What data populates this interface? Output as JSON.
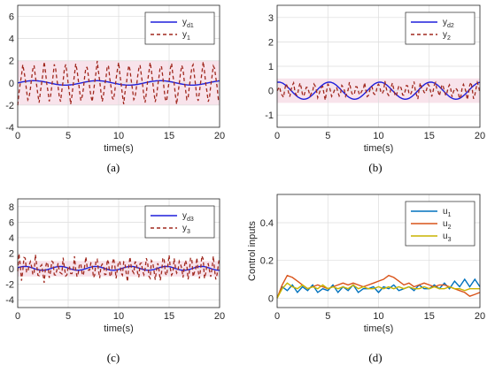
{
  "chart_data": [
    {
      "id": "a",
      "type": "line",
      "caption": "(a)",
      "xlabel": "time(s)",
      "ylabel": "",
      "xlim": [
        0,
        20
      ],
      "ylim": [
        -4,
        7
      ],
      "xticks": [
        0,
        5,
        10,
        15,
        20
      ],
      "yticks": [
        -4,
        -2,
        0,
        2,
        4,
        6
      ],
      "grid": true,
      "legend_position": "top-right",
      "band": [
        -2,
        2
      ],
      "series": [
        {
          "name": "y_d1",
          "label_main": "y",
          "label_sub": "d1",
          "style": "solid",
          "color": "#1f1fdc",
          "shape": "sine",
          "amp": 0.2,
          "period": 6.28,
          "phase": 0,
          "offset": 0
        },
        {
          "name": "y_1",
          "label_main": "y",
          "label_sub": "1",
          "style": "dashed",
          "color": "#a0281e",
          "shape": "zigzag",
          "amp": 1.9,
          "period": 1.05,
          "offset": 0
        }
      ]
    },
    {
      "id": "b",
      "type": "line",
      "caption": "(b)",
      "xlabel": "time(s)",
      "ylabel": "",
      "xlim": [
        0,
        20
      ],
      "ylim": [
        -1.5,
        3.5
      ],
      "xticks": [
        0,
        5,
        10,
        15,
        20
      ],
      "yticks": [
        -1,
        0,
        1,
        2,
        3
      ],
      "grid": true,
      "legend_position": "top-right",
      "band": [
        -0.5,
        0.5
      ],
      "series": [
        {
          "name": "y_d2",
          "label_main": "y",
          "label_sub": "d2",
          "style": "solid",
          "color": "#1f1fdc",
          "shape": "sine",
          "amp": 0.35,
          "period": 5,
          "phase": 1.4,
          "offset": 0
        },
        {
          "name": "y_2",
          "label_main": "y",
          "label_sub": "2",
          "style": "dashed",
          "color": "#a0281e",
          "shape": "noise",
          "amp": 0.3,
          "period": 0.7,
          "offset": 0
        }
      ]
    },
    {
      "id": "c",
      "type": "line",
      "caption": "(c)",
      "xlabel": "time(s)",
      "ylabel": "",
      "xlim": [
        0,
        20
      ],
      "ylim": [
        -5,
        9
      ],
      "xticks": [
        0,
        5,
        10,
        15,
        20
      ],
      "yticks": [
        -4,
        -2,
        0,
        2,
        4,
        6,
        8
      ],
      "grid": true,
      "legend_position": "top-right",
      "band": [
        -1,
        1
      ],
      "series": [
        {
          "name": "y_d3",
          "label_main": "y",
          "label_sub": "d3",
          "style": "solid",
          "color": "#1f1fdc",
          "shape": "sine",
          "amp": 0.25,
          "period": 3.5,
          "phase": 0.3,
          "offset": 0.05
        },
        {
          "name": "y_3",
          "label_main": "y",
          "label_sub": "3",
          "style": "dashed",
          "color": "#a0281e",
          "shape": "noise",
          "amp": 1.4,
          "period": 0.55,
          "offset": 0
        }
      ]
    },
    {
      "id": "d",
      "type": "line",
      "caption": "(d)",
      "xlabel": "time(s)",
      "ylabel": "Control inputs",
      "xlim": [
        0,
        20
      ],
      "ylim": [
        -0.05,
        0.55
      ],
      "xticks": [
        0,
        5,
        10,
        15,
        20
      ],
      "yticks": [
        0,
        0.2,
        0.4
      ],
      "grid": true,
      "legend_position": "top-right",
      "series": [
        {
          "name": "u_1",
          "label_main": "u",
          "label_sub": "1",
          "style": "solid",
          "color": "#0072bd",
          "shape": "points",
          "x": [
            0,
            0.5,
            1,
            1.5,
            2,
            2.5,
            3,
            3.5,
            4,
            4.5,
            5,
            5.5,
            6,
            6.5,
            7,
            7.5,
            8,
            8.5,
            9,
            9.5,
            10,
            10.5,
            11,
            11.5,
            12,
            12.5,
            13,
            13.5,
            14,
            14.5,
            15,
            15.5,
            16,
            16.5,
            17,
            17.5,
            18,
            18.5,
            19,
            19.5,
            20
          ],
          "y": [
            0.0,
            0.06,
            0.04,
            0.07,
            0.03,
            0.06,
            0.04,
            0.07,
            0.03,
            0.05,
            0.04,
            0.07,
            0.03,
            0.06,
            0.04,
            0.07,
            0.03,
            0.05,
            0.05,
            0.06,
            0.03,
            0.06,
            0.05,
            0.07,
            0.04,
            0.05,
            0.06,
            0.04,
            0.07,
            0.05,
            0.05,
            0.07,
            0.05,
            0.08,
            0.05,
            0.09,
            0.06,
            0.1,
            0.06,
            0.1,
            0.06
          ]
        },
        {
          "name": "u_2",
          "label_main": "u",
          "label_sub": "2",
          "style": "solid",
          "color": "#d95319",
          "shape": "points",
          "x": [
            0,
            0.5,
            1,
            1.5,
            2,
            2.5,
            3,
            3.5,
            4,
            4.5,
            5,
            5.5,
            6,
            6.5,
            7,
            7.5,
            8,
            8.5,
            9,
            9.5,
            10,
            10.5,
            11,
            11.5,
            12,
            12.5,
            13,
            13.5,
            14,
            14.5,
            15,
            15.5,
            16,
            16.5,
            17,
            17.5,
            18,
            18.5,
            19,
            19.5,
            20
          ],
          "y": [
            0.0,
            0.07,
            0.12,
            0.11,
            0.09,
            0.07,
            0.05,
            0.06,
            0.07,
            0.06,
            0.05,
            0.06,
            0.07,
            0.08,
            0.07,
            0.08,
            0.07,
            0.06,
            0.07,
            0.08,
            0.09,
            0.1,
            0.12,
            0.11,
            0.09,
            0.07,
            0.08,
            0.06,
            0.07,
            0.08,
            0.07,
            0.06,
            0.07,
            0.07,
            0.06,
            0.05,
            0.04,
            0.03,
            0.01,
            0.02,
            0.03
          ]
        },
        {
          "name": "u_3",
          "label_main": "u",
          "label_sub": "3",
          "style": "solid",
          "color": "#c8b400",
          "shape": "points",
          "x": [
            0,
            0.5,
            1,
            1.5,
            2,
            2.5,
            3,
            3.5,
            4,
            4.5,
            5,
            5.5,
            6,
            6.5,
            7,
            7.5,
            8,
            8.5,
            9,
            9.5,
            10,
            10.5,
            11,
            11.5,
            12,
            12.5,
            13,
            13.5,
            14,
            14.5,
            15,
            15.5,
            16,
            16.5,
            17,
            17.5,
            18,
            18.5,
            19,
            19.5,
            20
          ],
          "y": [
            0.0,
            0.05,
            0.08,
            0.06,
            0.05,
            0.07,
            0.05,
            0.06,
            0.05,
            0.07,
            0.05,
            0.06,
            0.05,
            0.06,
            0.05,
            0.07,
            0.05,
            0.06,
            0.05,
            0.05,
            0.06,
            0.05,
            0.06,
            0.05,
            0.06,
            0.05,
            0.06,
            0.05,
            0.05,
            0.06,
            0.05,
            0.06,
            0.05,
            0.05,
            0.06,
            0.05,
            0.05,
            0.04,
            0.05,
            0.05,
            0.05
          ]
        }
      ]
    }
  ]
}
